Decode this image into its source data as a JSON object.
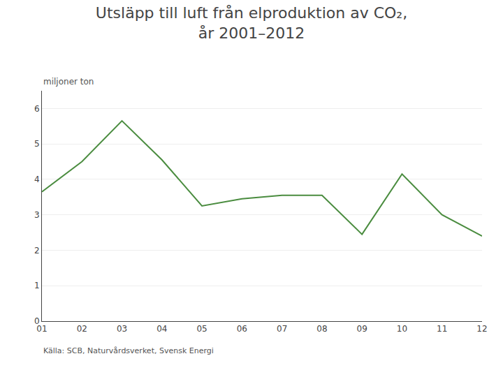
{
  "chart_data": {
    "type": "line",
    "title": "Utsläpp till luft från elproduktion av CO₂,\når 2001–2012",
    "ylabel": "miljoner ton",
    "source": "Källa: SCB, Naturvårdsverket, Svensk Energi",
    "categories": [
      "01",
      "02",
      "03",
      "04",
      "05",
      "06",
      "07",
      "08",
      "09",
      "10",
      "11",
      "12"
    ],
    "values": [
      3.65,
      4.5,
      5.65,
      4.55,
      3.25,
      3.45,
      3.55,
      3.55,
      2.45,
      4.15,
      3.0,
      2.4
    ],
    "color": "#4a8c3f",
    "ylim": [
      0,
      6.5
    ],
    "yticks": [
      0,
      1,
      2,
      3,
      4,
      5,
      6
    ],
    "grid": true
  }
}
